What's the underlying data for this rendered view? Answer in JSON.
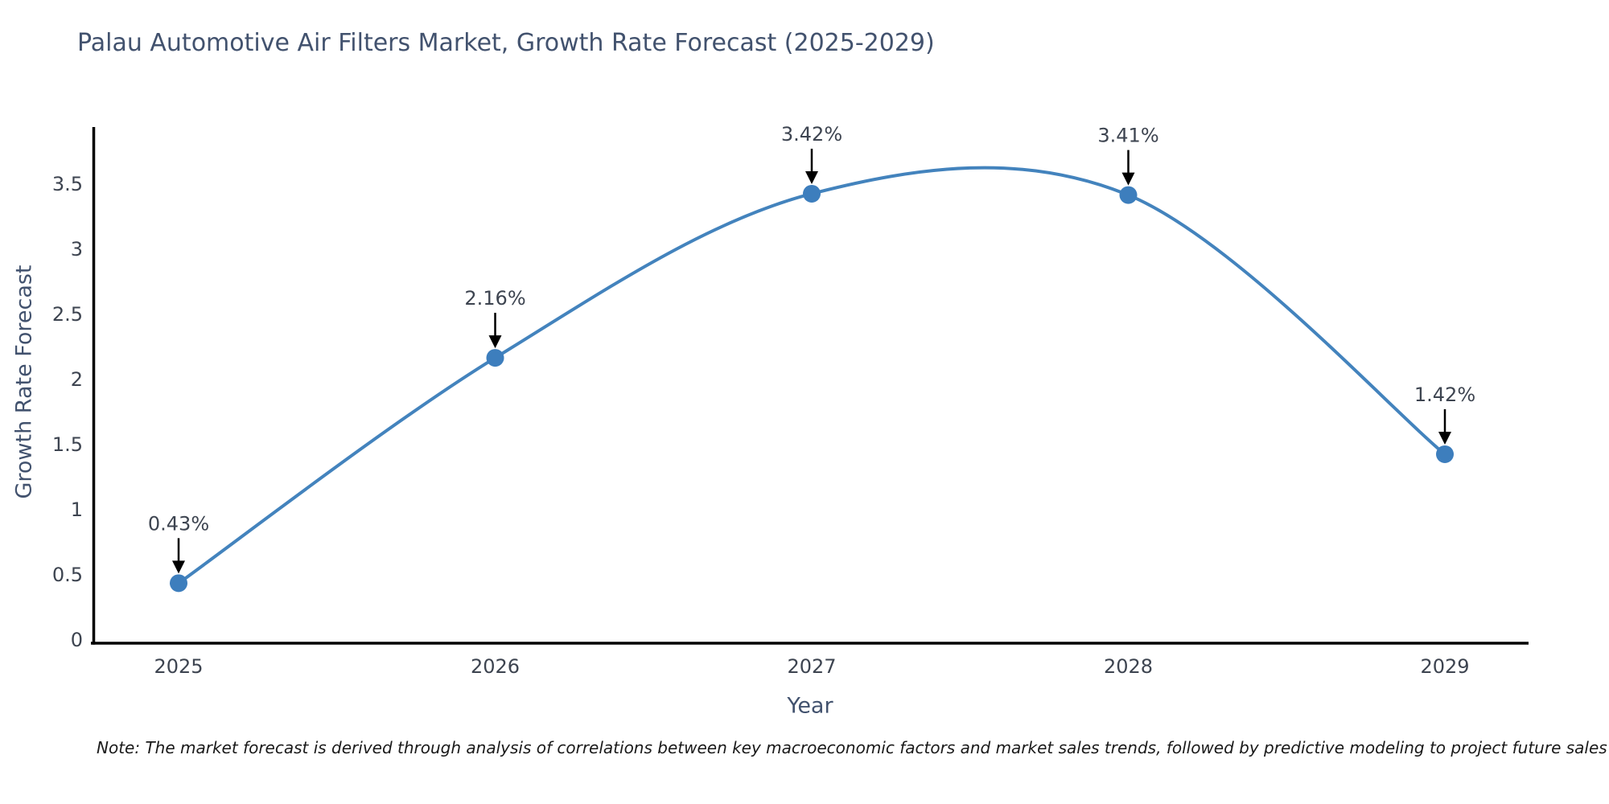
{
  "title": "Palau Automotive Air Filters Market, Growth Rate Forecast (2025-2029)",
  "note": "Note: The market forecast is derived through analysis of correlations between key macroeconomic factors and market sales trends, followed by predictive modeling to project future sales",
  "chart_data": {
    "type": "line",
    "title": "Palau Automotive Air Filters Market, Growth Rate Forecast (2025-2029)",
    "xlabel": "Year",
    "ylabel": "Growth Rate Forecast",
    "x": [
      2025,
      2026,
      2027,
      2028,
      2029
    ],
    "values": [
      0.43,
      2.16,
      3.42,
      3.41,
      1.42
    ],
    "point_labels": [
      "0.43%",
      "2.16%",
      "3.42%",
      "3.41%",
      "1.42%"
    ],
    "xticks": [
      "2025",
      "2026",
      "2027",
      "2028",
      "2029"
    ],
    "yticks": [
      0,
      0.5,
      1,
      1.5,
      2,
      2.5,
      3,
      3.5
    ],
    "ylim": [
      0,
      3.92
    ],
    "xlim": [
      2024.73,
      2029.27
    ],
    "grid": false,
    "legend": "none",
    "smoothing": "spline",
    "annotations": "black arrows pointing down from percentage labels to markers",
    "colors": {
      "line": "#4383bd",
      "marker": "#3d7ebd",
      "arrow": "#000000",
      "axis": "#000000",
      "title_text": "#42526e",
      "tick_text": "#3d4450",
      "note_text": "#1a1a1a"
    }
  }
}
